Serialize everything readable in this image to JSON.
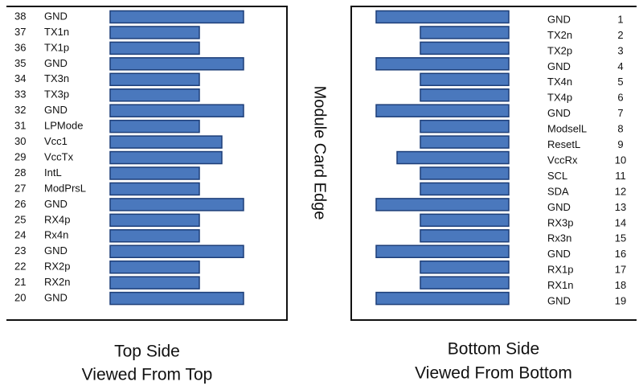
{
  "center_label": "Module Card Edge",
  "top_side": {
    "caption": [
      "Top Side",
      "Viewed From Top"
    ],
    "pins": [
      {
        "number": 38,
        "name": "GND"
      },
      {
        "number": 37,
        "name": "TX1n"
      },
      {
        "number": 36,
        "name": "TX1p"
      },
      {
        "number": 35,
        "name": "GND"
      },
      {
        "number": 34,
        "name": "TX3n"
      },
      {
        "number": 33,
        "name": "TX3p"
      },
      {
        "number": 32,
        "name": "GND"
      },
      {
        "number": 31,
        "name": "LPMode"
      },
      {
        "number": 30,
        "name": "Vcc1"
      },
      {
        "number": 29,
        "name": "VccTx"
      },
      {
        "number": 28,
        "name": "IntL"
      },
      {
        "number": 27,
        "name": "ModPrsL"
      },
      {
        "number": 26,
        "name": "GND"
      },
      {
        "number": 25,
        "name": "RX4p"
      },
      {
        "number": 24,
        "name": "Rx4n"
      },
      {
        "number": 23,
        "name": "GND"
      },
      {
        "number": 22,
        "name": "RX2p"
      },
      {
        "number": 21,
        "name": "RX2n"
      },
      {
        "number": 20,
        "name": "GND"
      }
    ]
  },
  "bottom_side": {
    "caption": [
      "Bottom Side",
      "Viewed From Bottom"
    ],
    "pins": [
      {
        "number": 1,
        "name": "GND"
      },
      {
        "number": 2,
        "name": "TX2n"
      },
      {
        "number": 3,
        "name": "TX2p"
      },
      {
        "number": 4,
        "name": "GND"
      },
      {
        "number": 5,
        "name": "TX4n"
      },
      {
        "number": 6,
        "name": "TX4p"
      },
      {
        "number": 7,
        "name": "GND"
      },
      {
        "number": 8,
        "name": "ModselL"
      },
      {
        "number": 9,
        "name": "ResetL"
      },
      {
        "number": 10,
        "name": "VccRx"
      },
      {
        "number": 11,
        "name": "SCL"
      },
      {
        "number": 12,
        "name": "SDA"
      },
      {
        "number": 13,
        "name": "GND"
      },
      {
        "number": 14,
        "name": "RX3p"
      },
      {
        "number": 15,
        "name": "Rx3n"
      },
      {
        "number": 16,
        "name": "GND"
      },
      {
        "number": 17,
        "name": "RX1p"
      },
      {
        "number": 18,
        "name": "RX1n"
      },
      {
        "number": 19,
        "name": "GND"
      }
    ]
  }
}
